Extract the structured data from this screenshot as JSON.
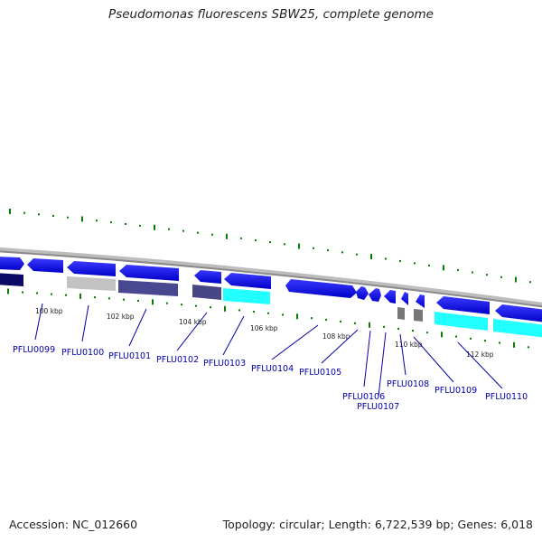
{
  "title": "Pseudomonas fluorescens SBW25, complete genome",
  "footer": {
    "accession": "Accession: NC_012660",
    "summary": "Topology: circular; Length: 6,722,539 bp; Genes: 6,018"
  },
  "map": {
    "scale_labels": [
      "100 kbp",
      "102 kbp",
      "104 kbp",
      "106 kbp",
      "108 kbp",
      "110 kbp",
      "112 kbp"
    ],
    "gene_labels": [
      "PFLU0099",
      "PFLU0100",
      "PFLU0101",
      "PFLU0102",
      "PFLU0103",
      "PFLU0104",
      "PFLU0105",
      "PFLU0106",
      "PFLU0107",
      "PFLU0108",
      "PFLU0109",
      "PFLU0110"
    ],
    "colors": {
      "backbone": "#8c8c8c",
      "gene_arrow": "#1a1aff",
      "gene_arrow_dark": "#0000b0",
      "navy": "#0a0a60",
      "light_gray": "#c4c4c4",
      "slate": "#48488e",
      "cyan": "#22ffff",
      "dark_gray": "#707070",
      "tick": "#008000",
      "label": "#0000aa"
    }
  }
}
